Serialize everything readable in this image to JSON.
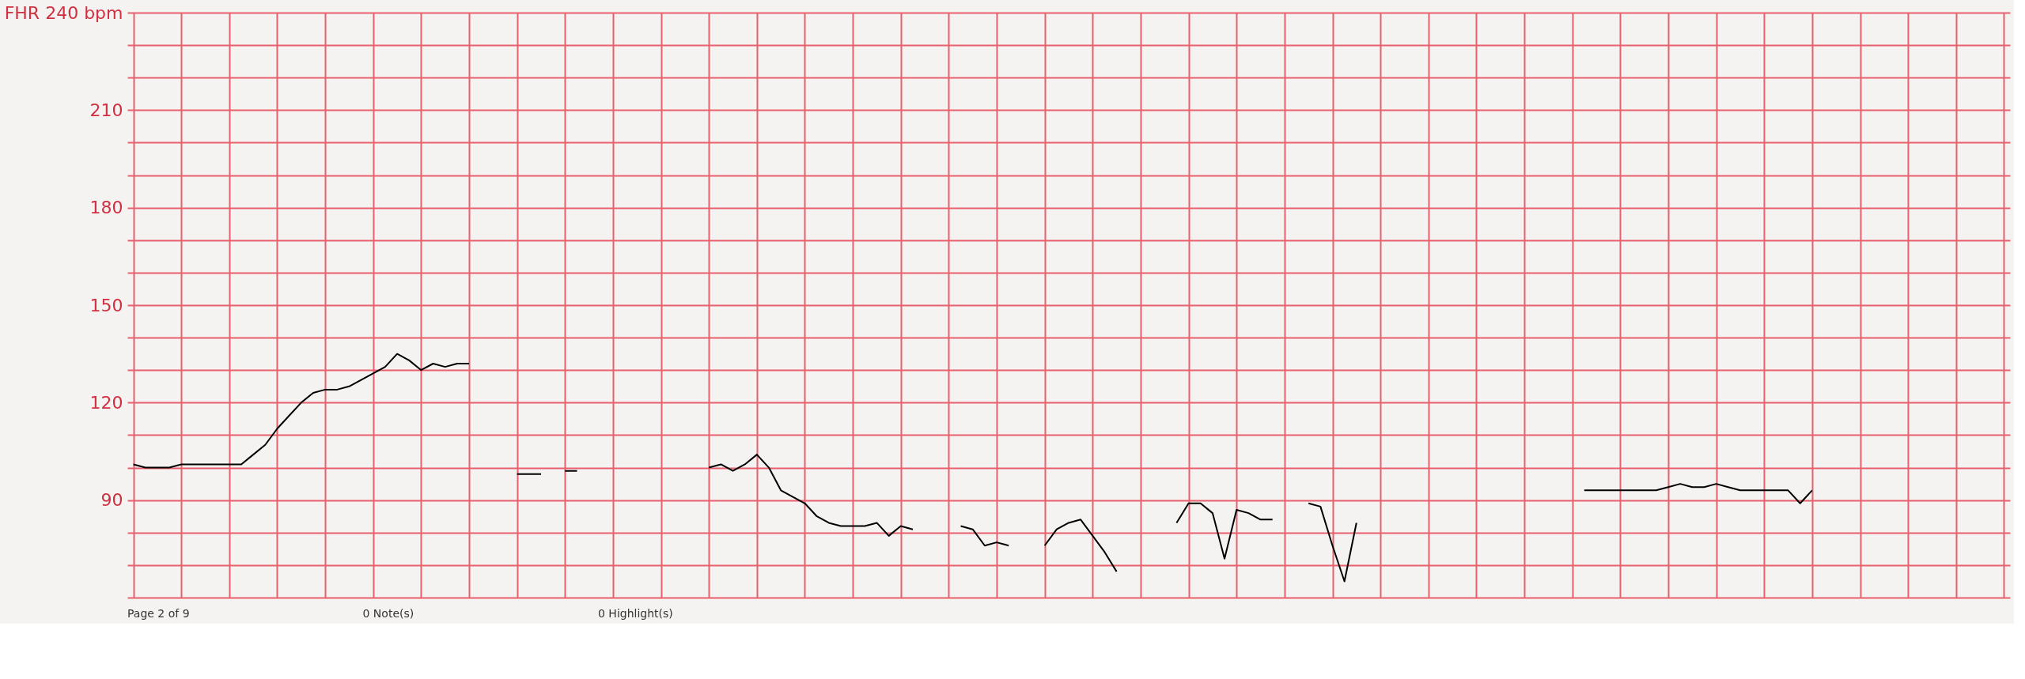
{
  "chart_data": {
    "type": "line",
    "categories": [
      null,
      null,
      null,
      null,
      null,
      null,
      null,
      null,
      null,
      null,
      null,
      null,
      null,
      null,
      null,
      null,
      null,
      null,
      null,
      null,
      null,
      null,
      null,
      null,
      null,
      null,
      null,
      null,
      null,
      null,
      null,
      null,
      null,
      null,
      null,
      null,
      null,
      null,
      null,
      null,
      null,
      null,
      null,
      null,
      null,
      null,
      null,
      null,
      null,
      null,
      null,
      null,
      null,
      null,
      null,
      null,
      null,
      null,
      null,
      null,
      null,
      null,
      null,
      null,
      null,
      null,
      null,
      null,
      null,
      null,
      null,
      null,
      null,
      null,
      null,
      null,
      null,
      null,
      null,
      null,
      null,
      null,
      null,
      null,
      null,
      null,
      null,
      null,
      null,
      null,
      null,
      null,
      null,
      null,
      null,
      null,
      null,
      null,
      null,
      null,
      null,
      null,
      null,
      null,
      null,
      null,
      null,
      null,
      null,
      null,
      null,
      null,
      null,
      null,
      null,
      null,
      null,
      null,
      null,
      null,
      null,
      null,
      null,
      null,
      null,
      null,
      null,
      null,
      null,
      null,
      null,
      null,
      null,
      null,
      null,
      null,
      null,
      null,
      null,
      null,
      null,
      null,
      null,
      null,
      null,
      null,
      null,
      null,
      null,
      null,
      null,
      null,
      null,
      null,
      null,
      null,
      null
    ],
    "series": [
      {
        "color": "#000000",
        "values": [
          101,
          100,
          100,
          100,
          101,
          101,
          101,
          101,
          101,
          101,
          104,
          107,
          112,
          116,
          120,
          123,
          124,
          124,
          125,
          127,
          129,
          131,
          135,
          133,
          130,
          132,
          131,
          132,
          132,
          null,
          null,
          null,
          98,
          98,
          98,
          null,
          99,
          99,
          null,
          null,
          null,
          null,
          null,
          null,
          null,
          null,
          null,
          null,
          100,
          101,
          99,
          101,
          104,
          100,
          93,
          91,
          89,
          85,
          83,
          82,
          82,
          82,
          83,
          79,
          82,
          81,
          null,
          null,
          null,
          82,
          81,
          76,
          77,
          76,
          null,
          null,
          76,
          81,
          83,
          84,
          79,
          74,
          68,
          null,
          null,
          null,
          null,
          83,
          89,
          89,
          86,
          72,
          87,
          86,
          84,
          84,
          null,
          null,
          89,
          88,
          76,
          65,
          83,
          null,
          null,
          null,
          null,
          null,
          null,
          null,
          null,
          null,
          null,
          null,
          null,
          null,
          null,
          null,
          null,
          null,
          null,
          93,
          93,
          93,
          93,
          93,
          93,
          93,
          94,
          95,
          94,
          94,
          95,
          94,
          93,
          93,
          93,
          93,
          93,
          89,
          93,
          null,
          null,
          null,
          null,
          null,
          null,
          null,
          null,
          null,
          null,
          null,
          null,
          null,
          null,
          null,
          null
        ]
      }
    ],
    "ylim": [
      60,
      240
    ],
    "yticks": [
      {
        "value": 60,
        "label": null
      },
      {
        "value": 70,
        "label": null
      },
      {
        "value": 80,
        "label": null
      },
      90,
      {
        "value": 100,
        "label": null
      },
      {
        "value": 110,
        "label": null
      },
      120,
      {
        "value": 130,
        "label": null
      },
      {
        "value": 140,
        "label": null
      },
      150,
      {
        "value": 160,
        "label": null
      },
      {
        "value": 170,
        "label": null
      },
      180,
      {
        "value": 190,
        "label": null
      },
      {
        "value": 200,
        "label": null
      },
      210,
      {
        "value": 220,
        "label": null
      },
      {
        "value": 230,
        "label": null
      },
      {
        "value": 240,
        "label": "FHR 240 bpm"
      }
    ],
    "grid": true,
    "marker": "none",
    "line_style": "solid",
    "annotations": [
      "Page 2 of 9",
      "0 Note(s)",
      "0 Highlight(s)"
    ]
  }
}
